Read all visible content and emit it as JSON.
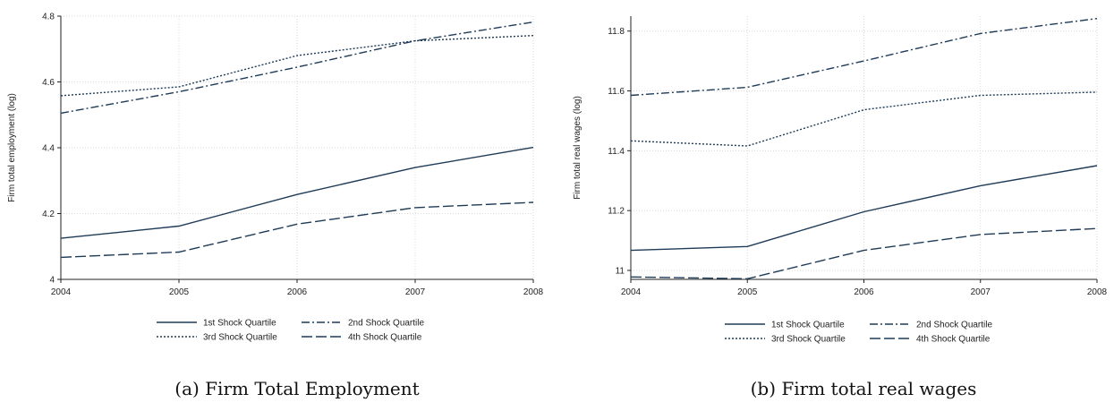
{
  "chart_data": [
    {
      "type": "line",
      "caption": "(a) Firm Total Employment",
      "ylabel": "Firm total employment (log)",
      "xlabel": "",
      "x": [
        2004,
        2005,
        2006,
        2007,
        2008
      ],
      "xticks": [
        "2004",
        "2005",
        "2006",
        "2007",
        "2008"
      ],
      "yticks": [
        "4",
        "4.2",
        "4.4",
        "4.6",
        "4.8"
      ],
      "ylim": [
        4.0,
        4.8
      ],
      "grid": true,
      "legend_position": "bottom",
      "series": [
        {
          "name": "1st Shock Quartile",
          "style": "solid",
          "values": [
            4.125,
            4.162,
            4.258,
            4.34,
            4.401
          ]
        },
        {
          "name": "2nd Shock Quartile",
          "style": "dashdot",
          "values": [
            4.505,
            4.57,
            4.645,
            4.725,
            4.782
          ]
        },
        {
          "name": "3rd Shock Quartile",
          "style": "dotted",
          "values": [
            4.558,
            4.585,
            4.68,
            4.725,
            4.741
          ]
        },
        {
          "name": "4th Shock Quartile",
          "style": "longdash",
          "values": [
            4.067,
            4.083,
            4.168,
            4.218,
            4.234
          ]
        }
      ]
    },
    {
      "type": "line",
      "caption": "(b) Firm total real wages",
      "ylabel": "Firm total real wages (log)",
      "xlabel": "",
      "x": [
        2004,
        2005,
        2006,
        2007,
        2008
      ],
      "xticks": [
        "2004",
        "2005",
        "2006",
        "2007",
        "2008"
      ],
      "yticks": [
        "11",
        "11.2",
        "11.4",
        "11.6",
        "11.8"
      ],
      "ylim": [
        10.97,
        11.85
      ],
      "grid": true,
      "legend_position": "bottom",
      "series": [
        {
          "name": "1st Shock Quartile",
          "style": "solid",
          "values": [
            11.067,
            11.08,
            11.196,
            11.283,
            11.35
          ]
        },
        {
          "name": "2nd Shock Quartile",
          "style": "dashdot",
          "values": [
            11.585,
            11.612,
            11.7,
            11.792,
            11.842
          ]
        },
        {
          "name": "3rd Shock Quartile",
          "style": "dotted",
          "values": [
            11.433,
            11.416,
            11.537,
            11.585,
            11.596
          ]
        },
        {
          "name": "4th Shock Quartile",
          "style": "longdash",
          "values": [
            10.978,
            10.972,
            11.067,
            11.12,
            11.14
          ]
        }
      ]
    }
  ],
  "colors": {
    "line": "#1f3b57",
    "grid": "#d8d8d8",
    "text": "#222222"
  }
}
